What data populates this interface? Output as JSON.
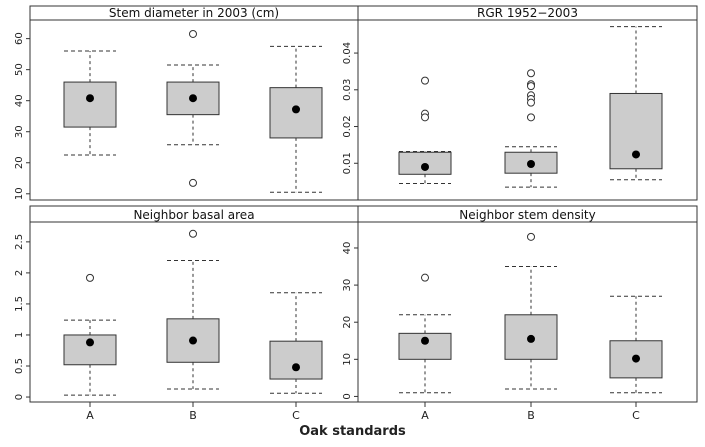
{
  "xlabel": "Oak standards",
  "categories": [
    "A",
    "B",
    "C"
  ],
  "colors": {
    "box_fill": "#cccccc",
    "line": "#333333",
    "strip_bg": "#ffffff"
  },
  "chart_data": [
    {
      "type": "boxplot",
      "title": "Stem diameter in 2003 (cm)",
      "categories": [
        "A",
        "B",
        "C"
      ],
      "ylim": [
        8,
        66
      ],
      "yticks": [
        10,
        20,
        30,
        40,
        50,
        60
      ],
      "boxes": [
        {
          "category": "A",
          "whisker_low": 22.5,
          "q1": 31.5,
          "q3": 46,
          "whisker_high": 56,
          "mean": 40.8,
          "outliers": []
        },
        {
          "category": "B",
          "whisker_low": 25.8,
          "q1": 35.5,
          "q3": 46,
          "whisker_high": 51.5,
          "mean": 40.8,
          "outliers": [
            61.5,
            13.5
          ]
        },
        {
          "category": "C",
          "whisker_low": 10.5,
          "q1": 28,
          "q3": 44.2,
          "whisker_high": 57.5,
          "mean": 37.2,
          "outliers": []
        }
      ]
    },
    {
      "type": "boxplot",
      "title": "RGR 1952−2003",
      "categories": [
        "A",
        "B",
        "C"
      ],
      "ylim": [
        0,
        0.049
      ],
      "yticks": [
        0.01,
        0.02,
        0.03,
        0.04
      ],
      "boxes": [
        {
          "category": "A",
          "whisker_low": 0.0045,
          "q1": 0.007,
          "q3": 0.013,
          "whisker_high": 0.0132,
          "mean": 0.009,
          "outliers": [
            0.0325,
            0.0235,
            0.0225
          ]
        },
        {
          "category": "B",
          "whisker_low": 0.0035,
          "q1": 0.0073,
          "q3": 0.013,
          "whisker_high": 0.0145,
          "mean": 0.0098,
          "outliers": [
            0.0345,
            0.0315,
            0.031,
            0.0285,
            0.0275,
            0.0265,
            0.0225
          ]
        },
        {
          "category": "C",
          "whisker_low": 0.0055,
          "q1": 0.0085,
          "q3": 0.029,
          "whisker_high": 0.0472,
          "mean": 0.0124,
          "outliers": []
        }
      ]
    },
    {
      "type": "boxplot",
      "title": "Neighbor basal area",
      "categories": [
        "A",
        "B",
        "C"
      ],
      "ylim": [
        -0.08,
        2.82
      ],
      "yticks": [
        0.0,
        0.5,
        1.0,
        1.5,
        2.0,
        2.5
      ],
      "boxes": [
        {
          "category": "A",
          "whisker_low": 0.03,
          "q1": 0.52,
          "q3": 1.0,
          "whisker_high": 1.24,
          "mean": 0.88,
          "outliers": [
            1.92
          ]
        },
        {
          "category": "B",
          "whisker_low": 0.13,
          "q1": 0.56,
          "q3": 1.26,
          "whisker_high": 2.2,
          "mean": 0.91,
          "outliers": [
            2.63
          ]
        },
        {
          "category": "C",
          "whisker_low": 0.06,
          "q1": 0.29,
          "q3": 0.9,
          "whisker_high": 1.68,
          "mean": 0.48,
          "outliers": []
        }
      ]
    },
    {
      "type": "boxplot",
      "title": "Neighbor stem density",
      "categories": [
        "A",
        "B",
        "C"
      ],
      "ylim": [
        -1.5,
        47
      ],
      "yticks": [
        0,
        10,
        20,
        30,
        40
      ],
      "boxes": [
        {
          "category": "A",
          "whisker_low": 1,
          "q1": 10,
          "q3": 17,
          "whisker_high": 22,
          "mean": 15,
          "outliers": [
            32
          ]
        },
        {
          "category": "B",
          "whisker_low": 2,
          "q1": 10,
          "q3": 22,
          "whisker_high": 35,
          "mean": 15.5,
          "outliers": [
            43
          ]
        },
        {
          "category": "C",
          "whisker_low": 1,
          "q1": 5,
          "q3": 15,
          "whisker_high": 27,
          "mean": 10.2,
          "outliers": []
        }
      ]
    }
  ]
}
